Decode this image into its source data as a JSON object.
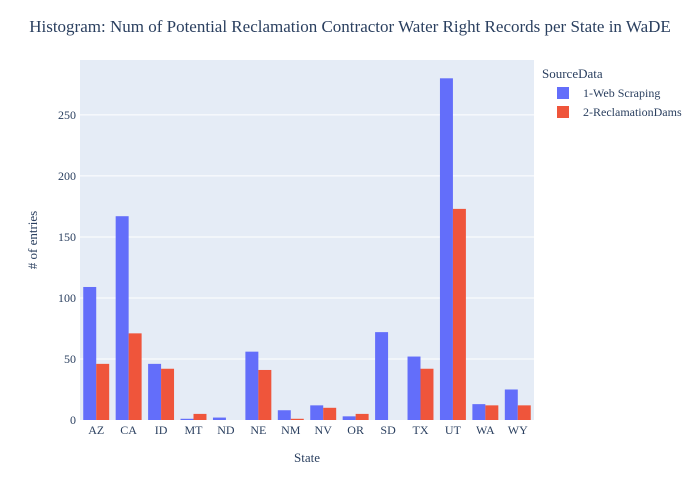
{
  "chart_data": {
    "type": "bar",
    "title": "Histogram: Num of Potential Reclamation Contractor Water Right Records per State in WaDE",
    "xlabel": "State",
    "ylabel": "# of entries",
    "categories": [
      "AZ",
      "CA",
      "ID",
      "MT",
      "ND",
      "NE",
      "NM",
      "NV",
      "OR",
      "SD",
      "TX",
      "UT",
      "WA",
      "WY"
    ],
    "series": [
      {
        "name": "1-Web Scraping",
        "color": "#636efa",
        "values": [
          109,
          167,
          46,
          1,
          2,
          56,
          8,
          12,
          3,
          72,
          52,
          280,
          13,
          25
        ]
      },
      {
        "name": "2-ReclamationDams",
        "color": "#ef553b",
        "values": [
          46,
          71,
          42,
          5,
          0,
          41,
          1,
          10,
          5,
          0,
          42,
          173,
          12,
          12
        ]
      }
    ],
    "ylim": [
      0,
      295
    ],
    "yticks": [
      0,
      50,
      100,
      150,
      200,
      250
    ],
    "legend": {
      "title": "SourceData",
      "placement": "top-right"
    },
    "grid": true,
    "plot_background": "#e5ecf6"
  }
}
